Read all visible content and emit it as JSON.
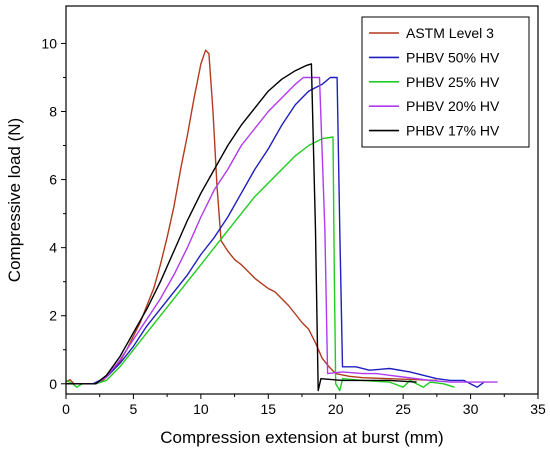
{
  "chart_data": {
    "type": "line",
    "title": "",
    "xlabel": "Compression extension at burst (mm)",
    "ylabel": "Compressive load (N)",
    "xlim": [
      0,
      35
    ],
    "ylim": [
      -0.3,
      11.1
    ],
    "xticks": [
      0,
      5,
      10,
      15,
      20,
      25,
      30,
      35
    ],
    "yticks": [
      0,
      2,
      4,
      6,
      8,
      10
    ],
    "grid": false,
    "legend_position": "top-right",
    "series": [
      {
        "name": "ASTM Level 3",
        "color": "#b23a1e",
        "points": [
          [
            0,
            0.05
          ],
          [
            0.3,
            0.12
          ],
          [
            0.6,
            0.0
          ],
          [
            1.2,
            0.0
          ],
          [
            2.0,
            0.0
          ],
          [
            2.6,
            0.05
          ],
          [
            3.0,
            0.2
          ],
          [
            3.5,
            0.4
          ],
          [
            4.0,
            0.65
          ],
          [
            4.5,
            1.0
          ],
          [
            5.0,
            1.4
          ],
          [
            5.5,
            1.8
          ],
          [
            6.0,
            2.3
          ],
          [
            6.5,
            2.8
          ],
          [
            7.0,
            3.5
          ],
          [
            7.5,
            4.3
          ],
          [
            8.0,
            5.2
          ],
          [
            8.5,
            6.3
          ],
          [
            9.0,
            7.3
          ],
          [
            9.5,
            8.4
          ],
          [
            10.0,
            9.4
          ],
          [
            10.35,
            9.8
          ],
          [
            10.6,
            9.7
          ],
          [
            10.9,
            8.0
          ],
          [
            11.2,
            5.8
          ],
          [
            11.5,
            4.2
          ],
          [
            12.0,
            3.9
          ],
          [
            12.5,
            3.65
          ],
          [
            13.0,
            3.5
          ],
          [
            13.5,
            3.3
          ],
          [
            14.0,
            3.1
          ],
          [
            14.5,
            2.95
          ],
          [
            15.0,
            2.8
          ],
          [
            15.5,
            2.7
          ],
          [
            16.0,
            2.5
          ],
          [
            16.5,
            2.3
          ],
          [
            17.0,
            2.05
          ],
          [
            17.5,
            1.8
          ],
          [
            18.0,
            1.6
          ],
          [
            18.5,
            1.2
          ],
          [
            19.0,
            0.75
          ],
          [
            19.5,
            0.5
          ],
          [
            20.0,
            0.3
          ],
          [
            21.0,
            0.22
          ],
          [
            22.0,
            0.18
          ],
          [
            24.0,
            0.15
          ],
          [
            26.0,
            0.12
          ],
          [
            27.5,
            0.1
          ]
        ]
      },
      {
        "name": "PHBV 50% HV",
        "color": "#1f1fbf",
        "points": [
          [
            0,
            0.0
          ],
          [
            2.0,
            0.0
          ],
          [
            3.0,
            0.2
          ],
          [
            4.0,
            0.6
          ],
          [
            5.0,
            1.1
          ],
          [
            6.0,
            1.7
          ],
          [
            7.0,
            2.2
          ],
          [
            8.0,
            2.7
          ],
          [
            9.0,
            3.2
          ],
          [
            10.0,
            3.8
          ],
          [
            11.0,
            4.3
          ],
          [
            12.0,
            4.9
          ],
          [
            13.0,
            5.6
          ],
          [
            14.0,
            6.3
          ],
          [
            15.0,
            6.9
          ],
          [
            16.0,
            7.6
          ],
          [
            17.0,
            8.2
          ],
          [
            18.0,
            8.6
          ],
          [
            19.0,
            8.8
          ],
          [
            19.6,
            9.0
          ],
          [
            20.1,
            9.0
          ],
          [
            20.3,
            4.5
          ],
          [
            20.5,
            0.5
          ],
          [
            21.5,
            0.5
          ],
          [
            22.5,
            0.4
          ],
          [
            24.0,
            0.45
          ],
          [
            25.5,
            0.35
          ],
          [
            26.5,
            0.25
          ],
          [
            27.5,
            0.15
          ],
          [
            28.5,
            0.1
          ],
          [
            29.5,
            0.1
          ],
          [
            30.5,
            -0.1
          ],
          [
            31.0,
            0.05
          ]
        ]
      },
      {
        "name": "PHBV 25% HV",
        "color": "#22cc22",
        "points": [
          [
            0,
            0.1
          ],
          [
            0.5,
            0.0
          ],
          [
            0.8,
            -0.1
          ],
          [
            1.2,
            0.0
          ],
          [
            2.2,
            0.0
          ],
          [
            3.0,
            0.1
          ],
          [
            4.0,
            0.5
          ],
          [
            5.0,
            1.0
          ],
          [
            6.0,
            1.5
          ],
          [
            7.0,
            2.0
          ],
          [
            8.0,
            2.5
          ],
          [
            9.0,
            3.0
          ],
          [
            10.0,
            3.5
          ],
          [
            11.0,
            4.0
          ],
          [
            12.0,
            4.5
          ],
          [
            13.0,
            5.0
          ],
          [
            14.0,
            5.5
          ],
          [
            15.0,
            5.9
          ],
          [
            16.0,
            6.3
          ],
          [
            17.0,
            6.7
          ],
          [
            18.0,
            7.0
          ],
          [
            19.0,
            7.2
          ],
          [
            19.8,
            7.25
          ],
          [
            19.9,
            3.0
          ],
          [
            20.0,
            0.0
          ],
          [
            20.3,
            -0.2
          ],
          [
            20.5,
            0.15
          ],
          [
            22.0,
            0.1
          ],
          [
            24.0,
            0.05
          ],
          [
            25.0,
            -0.1
          ],
          [
            25.5,
            0.1
          ],
          [
            26.5,
            -0.1
          ],
          [
            27.0,
            0.05
          ],
          [
            28.0,
            0.0
          ],
          [
            28.8,
            -0.1
          ]
        ]
      },
      {
        "name": "PHBV 20% HV",
        "color": "#b03aef",
        "points": [
          [
            0,
            0.0
          ],
          [
            2.2,
            0.0
          ],
          [
            3.0,
            0.2
          ],
          [
            4.0,
            0.7
          ],
          [
            5.0,
            1.3
          ],
          [
            6.0,
            1.9
          ],
          [
            7.0,
            2.5
          ],
          [
            8.0,
            3.2
          ],
          [
            9.0,
            4.0
          ],
          [
            10.0,
            4.9
          ],
          [
            11.0,
            5.7
          ],
          [
            12.0,
            6.3
          ],
          [
            13.0,
            7.0
          ],
          [
            14.0,
            7.5
          ],
          [
            15.0,
            8.0
          ],
          [
            16.0,
            8.4
          ],
          [
            17.0,
            8.8
          ],
          [
            17.6,
            9.0
          ],
          [
            18.8,
            9.0
          ],
          [
            19.2,
            4.5
          ],
          [
            19.4,
            0.3
          ],
          [
            20.5,
            0.35
          ],
          [
            22.0,
            0.3
          ],
          [
            23.0,
            0.3
          ],
          [
            24.0,
            0.25
          ],
          [
            25.0,
            0.2
          ],
          [
            26.0,
            0.15
          ],
          [
            27.0,
            0.1
          ],
          [
            28.5,
            0.05
          ],
          [
            30.0,
            0.05
          ],
          [
            32.0,
            0.05
          ]
        ]
      },
      {
        "name": "PHBV 17% HV",
        "color": "#000000",
        "points": [
          [
            0,
            0.0
          ],
          [
            2.2,
            0.0
          ],
          [
            3.0,
            0.25
          ],
          [
            4.0,
            0.8
          ],
          [
            5.0,
            1.5
          ],
          [
            6.0,
            2.2
          ],
          [
            7.0,
            3.0
          ],
          [
            8.0,
            3.9
          ],
          [
            9.0,
            4.8
          ],
          [
            10.0,
            5.6
          ],
          [
            11.0,
            6.3
          ],
          [
            12.0,
            7.0
          ],
          [
            13.0,
            7.6
          ],
          [
            14.0,
            8.1
          ],
          [
            15.0,
            8.6
          ],
          [
            16.0,
            8.95
          ],
          [
            17.0,
            9.2
          ],
          [
            17.8,
            9.35
          ],
          [
            18.2,
            9.4
          ],
          [
            18.5,
            4.5
          ],
          [
            18.7,
            -0.2
          ],
          [
            18.9,
            0.15
          ],
          [
            20.5,
            0.1
          ],
          [
            22.0,
            0.1
          ],
          [
            24.0,
            0.1
          ],
          [
            26.0,
            0.05
          ]
        ]
      }
    ]
  }
}
